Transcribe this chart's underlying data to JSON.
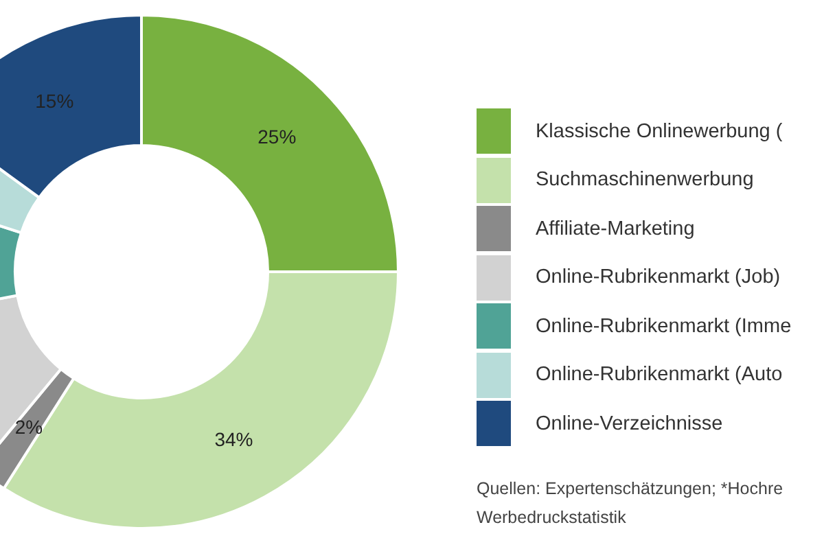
{
  "chart_data": {
    "type": "donut",
    "categories": [
      "Klassische Onlinewerbung (",
      "Suchmaschinenwerbung",
      "Affiliate-Marketing",
      "Online-Rubrikenmarkt (Job)",
      "Online-Rubrikenmarkt (Imme",
      "Online-Rubrikenmarkt (Auto",
      "Online-Verzeichnisse"
    ],
    "values": [
      25,
      34,
      2,
      11,
      8,
      5,
      15
    ],
    "value_labels": [
      "25%",
      "34%",
      "2%",
      null,
      null,
      null,
      "15%"
    ],
    "colors": [
      "#78b140",
      "#c4e1ab",
      "#8a8a8a",
      "#d2d2d2",
      "#50a396",
      "#b7dcd9",
      "#1f4a7e"
    ],
    "legend": "right",
    "annotations": [
      "Quellen: Expertenschätzungen; *Hochre",
      "Werbedruckstatistik"
    ]
  }
}
